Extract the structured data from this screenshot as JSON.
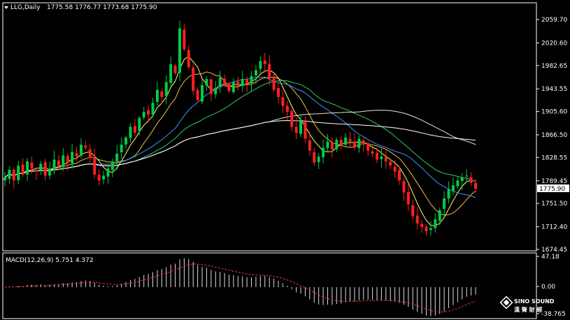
{
  "header": {
    "symbol_label": "LLG,Daily",
    "ohlc": "1775.58 1776.77 1773.68 1775.90"
  },
  "price_axis": {
    "ticks": [
      "2059.70",
      "2020.60",
      "1982.65",
      "1943.55",
      "1905.60",
      "1866.50",
      "1828.55",
      "1789.45",
      "1751.50",
      "1712.40",
      "1674.45"
    ],
    "last_price": "1775.90"
  },
  "macd_panel": {
    "label": "MACD(12,26,9) 5.751 4.372",
    "ticks": [
      "47.18",
      "0.00",
      "-38.765"
    ]
  },
  "logo": {
    "line1": "SINO SOUND",
    "line2": "漢 聲 財 經"
  },
  "colors": {
    "bull": "#00cc44",
    "bear": "#ff2020",
    "ma5": "#ffff66",
    "ma10": "#f0c040",
    "ma20": "#3399ff",
    "ma30": "#33cc66",
    "ma60": "#e8e8c8",
    "ma120": "#ffffff",
    "macd_hist": "#dddddd",
    "macd_signal": "#ff3030",
    "grid": "#ffffff"
  },
  "chart_data": [
    {
      "type": "candlestick",
      "title": "LLG,Daily",
      "ylim": [
        1665,
        2080
      ],
      "closes": [
        1795,
        1808,
        1790,
        1815,
        1800,
        1822,
        1810,
        1805,
        1818,
        1798,
        1810,
        1825,
        1815,
        1832,
        1820,
        1838,
        1830,
        1850,
        1845,
        1828,
        1800,
        1790,
        1798,
        1810,
        1820,
        1835,
        1850,
        1862,
        1880,
        1870,
        1895,
        1905,
        1900,
        1920,
        1942,
        1930,
        1955,
        1985,
        1970,
        2045,
        2010,
        1980,
        1940,
        1925,
        1950,
        1960,
        1935,
        1945,
        1962,
        1950,
        1940,
        1955,
        1948,
        1960,
        1952,
        1965,
        1975,
        1990,
        1985,
        1960,
        1942,
        1930,
        1915,
        1905,
        1880,
        1870,
        1890,
        1860,
        1840,
        1820,
        1830,
        1845,
        1855,
        1842,
        1858,
        1850,
        1862,
        1855,
        1845,
        1860,
        1850,
        1840,
        1835,
        1825,
        1830,
        1822,
        1815,
        1805,
        1790,
        1770,
        1750,
        1730,
        1718,
        1712,
        1705,
        1710,
        1725,
        1740,
        1760,
        1775,
        1782,
        1790,
        1795,
        1798,
        1786,
        1776
      ],
      "y_tick_labels": [
        "2059.70",
        "2020.60",
        "1982.65",
        "1943.55",
        "1905.60",
        "1866.50",
        "1828.55",
        "1789.45",
        "1751.50",
        "1712.40",
        "1674.45"
      ],
      "last_price_label": "1775.90"
    },
    {
      "type": "bar",
      "title": "MACD(12,26,9) 5.751 4.372",
      "ylim": [
        -38.765,
        47.18
      ],
      "y_tick_labels": [
        "47.18",
        "0.00",
        "-38.765"
      ]
    }
  ]
}
